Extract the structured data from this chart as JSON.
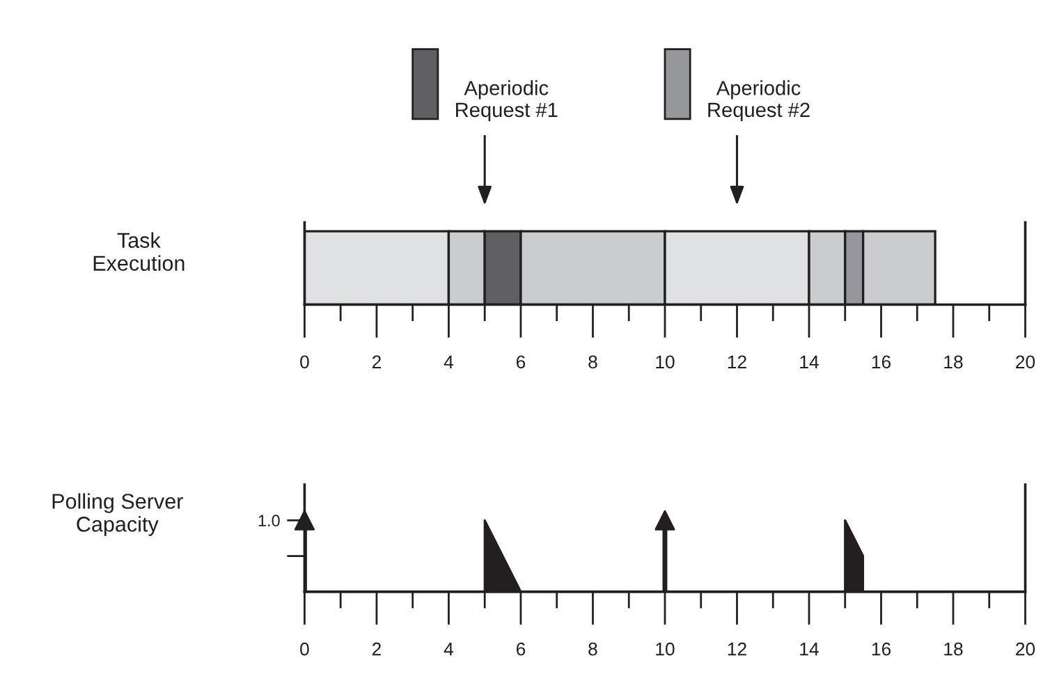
{
  "chart_data": [
    {
      "type": "bar",
      "orientation": "horizontal",
      "stacked": true,
      "categories": [
        null
      ],
      "ylabel": "Task\nExecution",
      "series": [
        {
          "color": "#e0e1e2",
          "values": [
            4
          ]
        },
        {
          "color": "#cbcccd",
          "values": [
            1
          ]
        },
        {
          "color": "#606062",
          "values": [
            1
          ]
        },
        {
          "color": "#cbcccd",
          "values": [
            4
          ]
        },
        {
          "color": "#e0e1e2",
          "values": [
            4
          ]
        },
        {
          "color": "#cbcccd",
          "values": [
            1
          ]
        },
        {
          "color": "#96979a",
          "values": [
            0.5
          ]
        },
        {
          "color": "#cbcccd",
          "values": [
            2
          ]
        }
      ],
      "annotations": [
        "Aperiodic\nRequest #1",
        "Aperiodic\nRequest #2"
      ],
      "xlim": [
        0,
        20
      ],
      "xticks": [
        0,
        {
          "value": 1,
          "label": null
        },
        2,
        {
          "value": 3,
          "label": null
        },
        4,
        {
          "value": 5,
          "label": null
        },
        6,
        {
          "value": 7,
          "label": null
        },
        8,
        {
          "value": 9,
          "label": null
        },
        10,
        {
          "value": 11,
          "label": null
        },
        12,
        {
          "value": 13,
          "label": null
        },
        14,
        {
          "value": 15,
          "label": null
        },
        16,
        {
          "value": 17,
          "label": null
        },
        18,
        {
          "value": 19,
          "label": null
        },
        20
      ],
      "grid": false,
      "legend": false
    },
    {
      "type": "area",
      "ylabel": "Polling Server\nCapacity",
      "series": [
        {
          "color": "#231f20",
          "x": [
            0,
            5,
            5,
            6,
            15,
            15,
            15.5,
            15.5
          ],
          "values": [
            0,
            0,
            1,
            0,
            0,
            1,
            0.5,
            0
          ]
        },
        {
          "type": "lollipop",
          "color": "#231f20",
          "marker": "triangle",
          "x": [
            0,
            10
          ],
          "values": [
            1,
            1
          ]
        }
      ],
      "xlim": [
        0,
        20
      ],
      "xticks": [
        0,
        {
          "value": 1,
          "label": null
        },
        2,
        {
          "value": 3,
          "label": null
        },
        4,
        {
          "value": 5,
          "label": null
        },
        6,
        {
          "value": 7,
          "label": null
        },
        8,
        {
          "value": 9,
          "label": null
        },
        10,
        {
          "value": 11,
          "label": null
        },
        12,
        {
          "value": 13,
          "label": null
        },
        14,
        {
          "value": 15,
          "label": null
        },
        16,
        {
          "value": 17,
          "label": null
        },
        18,
        {
          "value": 19,
          "label": null
        },
        20
      ],
      "ylim": [
        0,
        1.5
      ],
      "yticks": [
        {
          "value": 0.5,
          "label": null
        },
        {
          "value": 1,
          "label": "1.0"
        }
      ],
      "grid": false,
      "legend": false
    }
  ]
}
